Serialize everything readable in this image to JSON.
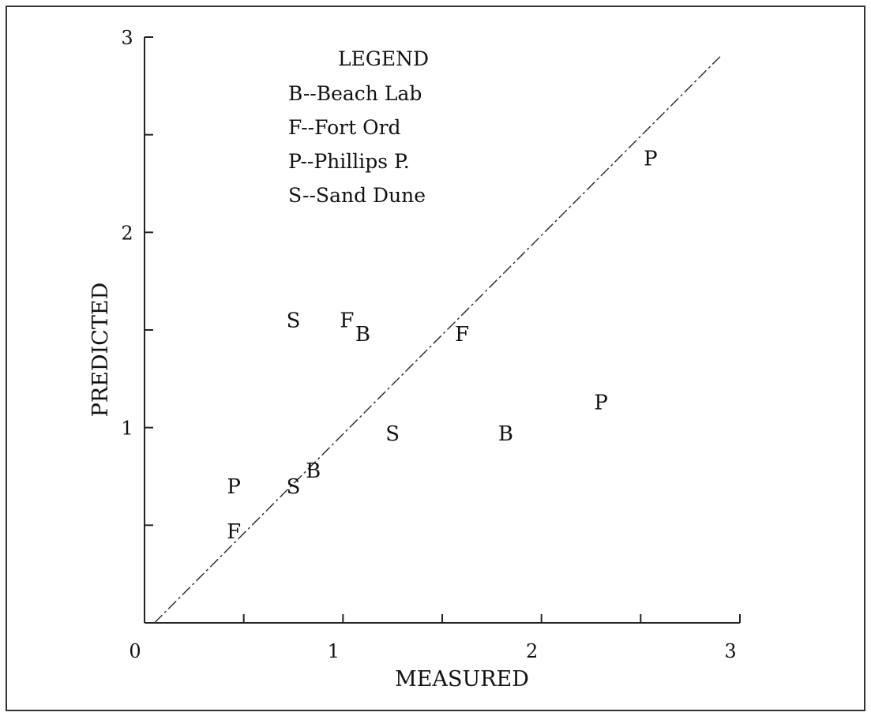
{
  "chart_data": {
    "type": "scatter",
    "title": "",
    "xlabel": "MEASURED",
    "ylabel": "PREDICTED",
    "xlim": [
      0,
      3
    ],
    "ylim": [
      0,
      3
    ],
    "x_ticks": [
      {
        "value": 0,
        "label": "0"
      },
      {
        "value": 1,
        "label": "1"
      },
      {
        "value": 2,
        "label": "2"
      },
      {
        "value": 3,
        "label": "3"
      }
    ],
    "y_ticks": [
      {
        "value": 1,
        "label": "1"
      },
      {
        "value": 2,
        "label": "2"
      },
      {
        "value": 3,
        "label": "3"
      }
    ],
    "minor_tick_step": 0.5,
    "grid": false,
    "legend_position": "top-center",
    "legend": {
      "title": "LEGEND",
      "entries": [
        "B--Beach Lab",
        "F--Fort Ord",
        "P--Phillips P.",
        "S--Sand Dune"
      ]
    },
    "reference_line": {
      "style": "dash-dot",
      "from": [
        0.05,
        0
      ],
      "to": [
        2.9,
        2.9
      ]
    },
    "points": [
      {
        "label": "P",
        "x": 0.45,
        "y": 0.7
      },
      {
        "label": "F",
        "x": 0.45,
        "y": 0.47
      },
      {
        "label": "S",
        "x": 0.75,
        "y": 0.7
      },
      {
        "label": "B",
        "x": 0.85,
        "y": 0.78
      },
      {
        "label": "S",
        "x": 0.75,
        "y": 1.55
      },
      {
        "label": "F",
        "x": 1.02,
        "y": 1.55
      },
      {
        "label": "B",
        "x": 1.1,
        "y": 1.48
      },
      {
        "label": "S",
        "x": 1.25,
        "y": 0.97
      },
      {
        "label": "F",
        "x": 1.6,
        "y": 1.48
      },
      {
        "label": "B",
        "x": 1.82,
        "y": 0.97
      },
      {
        "label": "P",
        "x": 2.3,
        "y": 1.13
      },
      {
        "label": "P",
        "x": 2.55,
        "y": 2.38
      }
    ]
  }
}
